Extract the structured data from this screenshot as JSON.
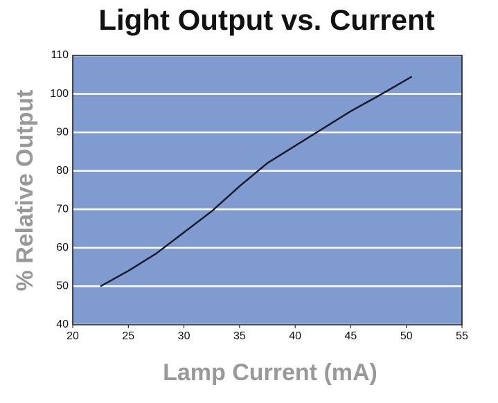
{
  "chart_data": {
    "type": "line",
    "title": "Light Output vs. Current",
    "x_label": "Lamp Current (mA)",
    "y_label": "% Relative Output",
    "x": [
      22.5,
      25,
      27.5,
      30,
      32.5,
      35,
      37.5,
      40,
      42.5,
      45,
      47.5,
      50.5
    ],
    "series": [
      {
        "name": "Relative Output",
        "color": "#1a1a2a",
        "values": [
          50,
          54,
          58.5,
          64,
          69.5,
          76,
          82,
          86.5,
          91,
          95.5,
          99.5,
          104.5
        ]
      }
    ],
    "xlim": [
      20,
      55
    ],
    "xticks": [
      20,
      25,
      30,
      35,
      40,
      45,
      50,
      55
    ],
    "ylim": [
      40,
      110
    ],
    "yticks": [
      40,
      50,
      60,
      70,
      80,
      90,
      100,
      110
    ],
    "grid": true,
    "plot_background": "#7f9bd0",
    "grid_color": "#ffffff"
  }
}
